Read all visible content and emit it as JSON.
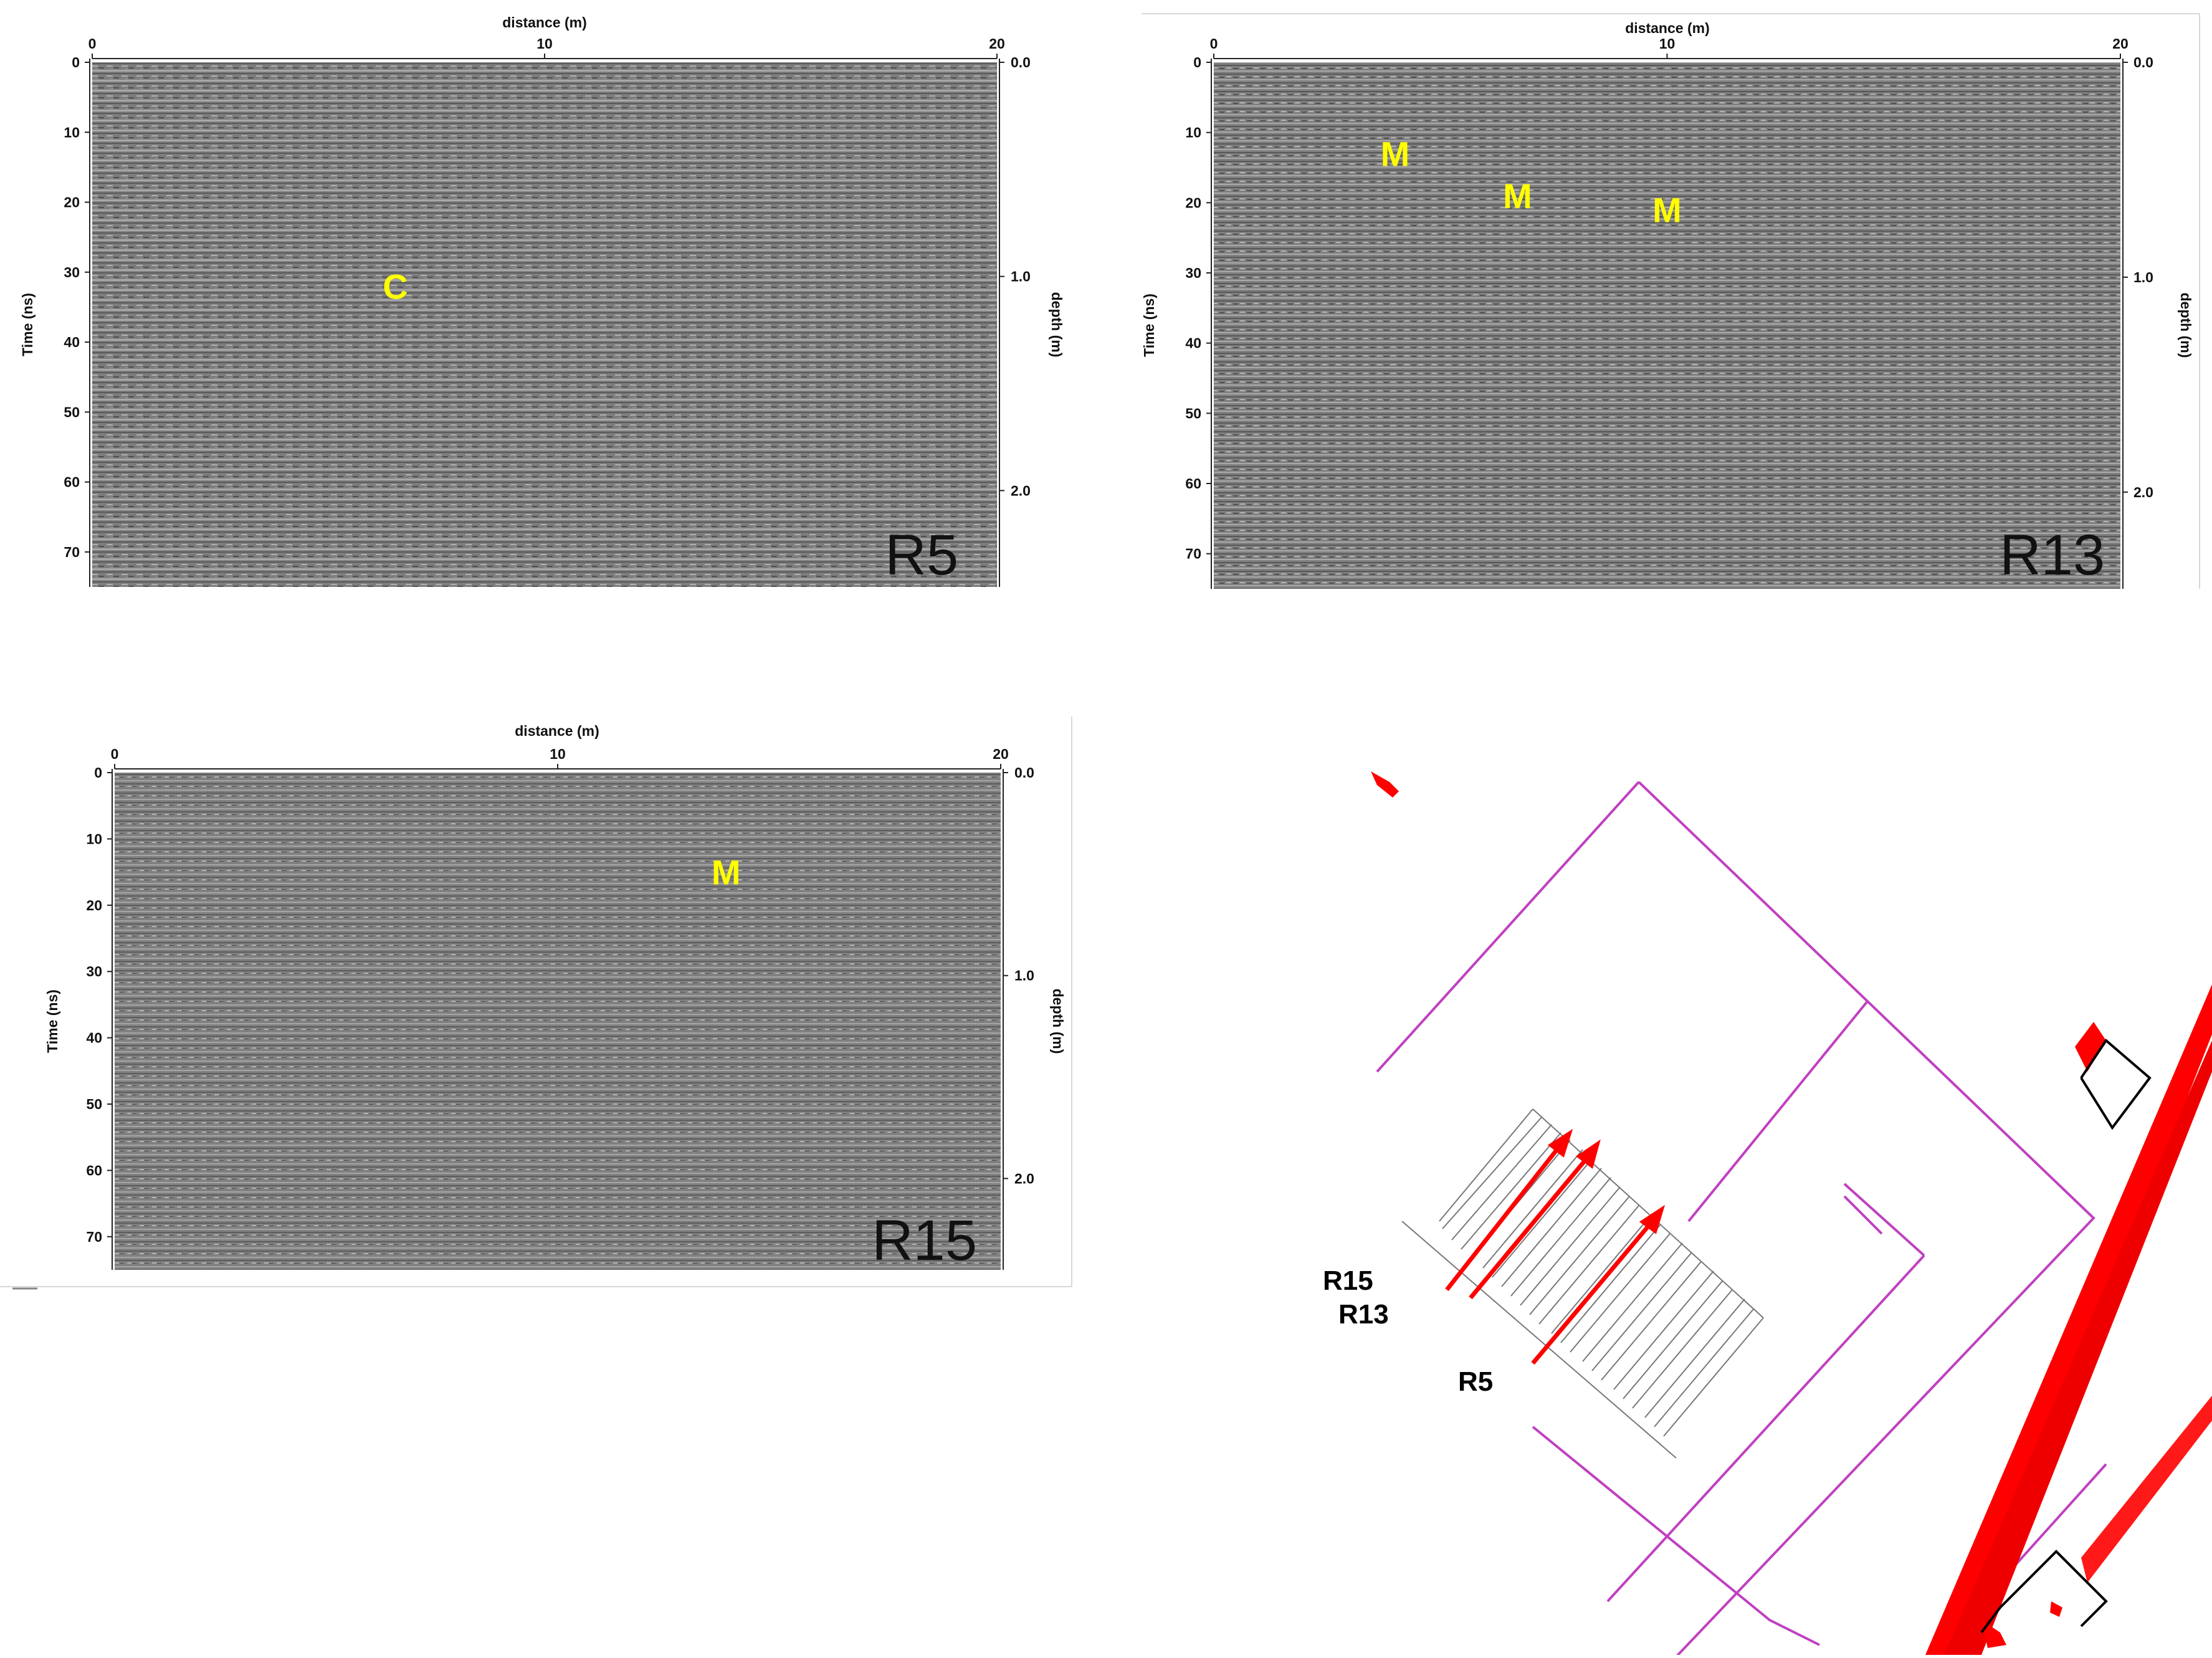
{
  "colors": {
    "background": "#ffffff",
    "radargram_gray": "#7f7f7f",
    "marker_yellow": "#ffff00",
    "map_outline": "#c040c0",
    "map_wall": "#ff0000",
    "map_arrow": "#ff0000",
    "map_black": "#000000"
  },
  "chart_data": [
    {
      "type": "radargram",
      "profile": "R5",
      "xlabel": "distance (m)",
      "ylabel": "Time (ns)",
      "y2label": "depth (m)",
      "xlim": [
        0,
        20
      ],
      "ylim": [
        75,
        0
      ],
      "x_ticks": [
        "0",
        "10",
        "20"
      ],
      "y_ticks": [
        "0",
        "10",
        "20",
        "30",
        "40",
        "50",
        "60",
        "70"
      ],
      "depth_ticks": [
        "0.0",
        "1.0",
        "2.0"
      ],
      "annotations": [
        {
          "text": "C",
          "distance_m": 6.7,
          "time_ns": 32
        }
      ]
    },
    {
      "type": "radargram",
      "profile": "R13",
      "xlabel": "distance (m)",
      "ylabel": "Time (ns)",
      "y2label": "depth (m)",
      "xlim": [
        0,
        20
      ],
      "ylim": [
        75,
        0
      ],
      "x_ticks": [
        "0",
        "10",
        "20"
      ],
      "y_ticks": [
        "0",
        "10",
        "20",
        "30",
        "40",
        "50",
        "60",
        "70"
      ],
      "depth_ticks": [
        "0.0",
        "1.0",
        "2.0"
      ],
      "annotations": [
        {
          "text": "M",
          "distance_m": 4.0,
          "time_ns": 13
        },
        {
          "text": "M",
          "distance_m": 6.7,
          "time_ns": 19
        },
        {
          "text": "M",
          "distance_m": 10.0,
          "time_ns": 21
        }
      ]
    },
    {
      "type": "radargram",
      "profile": "R15",
      "xlabel": "distance (m)",
      "ylabel": "Time (ns)",
      "y2label": "depth (m)",
      "xlim": [
        0,
        20
      ],
      "ylim": [
        75,
        0
      ],
      "x_ticks": [
        "0",
        "10",
        "20"
      ],
      "y_ticks": [
        "0",
        "10",
        "20",
        "30",
        "40",
        "50",
        "60",
        "70"
      ],
      "depth_ticks": [
        "0.0",
        "1.0",
        "2.0"
      ],
      "annotations": [
        {
          "text": "M",
          "distance_m": 13.8,
          "time_ns": 15
        }
      ]
    }
  ],
  "site_map": {
    "profile_labels": [
      "R15",
      "R13",
      "R5"
    ]
  }
}
